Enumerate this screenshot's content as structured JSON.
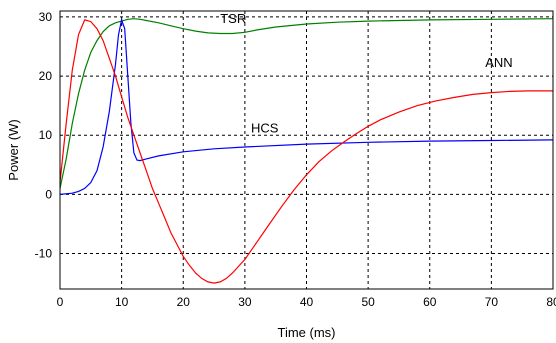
{
  "chart_data": {
    "type": "line",
    "xlabel": "Time (ms)",
    "ylabel": "Power (W)",
    "xlim": [
      0,
      80
    ],
    "ylim": [
      -16,
      31
    ],
    "xticks": [
      0,
      10,
      20,
      30,
      40,
      50,
      60,
      70,
      80
    ],
    "yticks": [
      -10,
      0,
      10,
      20,
      30
    ],
    "grid": "dashed",
    "legend": "inline labels",
    "series": [
      {
        "name": "TSR",
        "color": "#008000",
        "label_at": [
          26,
          29
        ],
        "points": [
          [
            0,
            1
          ],
          [
            1,
            6
          ],
          [
            2,
            12
          ],
          [
            3,
            17
          ],
          [
            4,
            21
          ],
          [
            5,
            24
          ],
          [
            6,
            26
          ],
          [
            7,
            27.5
          ],
          [
            8,
            28.5
          ],
          [
            9,
            29
          ],
          [
            10,
            29.3
          ],
          [
            11,
            29.6
          ],
          [
            12,
            29.7
          ],
          [
            13,
            29.6
          ],
          [
            14,
            29.4
          ],
          [
            16,
            29
          ],
          [
            18,
            28.5
          ],
          [
            20,
            28
          ],
          [
            22,
            27.6
          ],
          [
            24,
            27.3
          ],
          [
            26,
            27.2
          ],
          [
            28,
            27.2
          ],
          [
            30,
            27.4
          ],
          [
            32,
            27.8
          ],
          [
            35,
            28.3
          ],
          [
            40,
            28.8
          ],
          [
            45,
            29.1
          ],
          [
            50,
            29.3
          ],
          [
            60,
            29.5
          ],
          [
            70,
            29.6
          ],
          [
            80,
            29.7
          ]
        ]
      },
      {
        "name": "HCS",
        "color": "#0000ff",
        "label_at": [
          31,
          10.5
        ],
        "points": [
          [
            0,
            0
          ],
          [
            2,
            0.2
          ],
          [
            3,
            0.5
          ],
          [
            4,
            1
          ],
          [
            5,
            2
          ],
          [
            6,
            4
          ],
          [
            7,
            8
          ],
          [
            8,
            14
          ],
          [
            9,
            22
          ],
          [
            9.5,
            27
          ],
          [
            10,
            29.5
          ],
          [
            10.5,
            28
          ],
          [
            11,
            20
          ],
          [
            11.5,
            12
          ],
          [
            12,
            7
          ],
          [
            12.5,
            5.8
          ],
          [
            13,
            5.7
          ],
          [
            14,
            6
          ],
          [
            16,
            6.5
          ],
          [
            20,
            7.2
          ],
          [
            25,
            7.7
          ],
          [
            30,
            8
          ],
          [
            40,
            8.5
          ],
          [
            50,
            8.8
          ],
          [
            60,
            9
          ],
          [
            70,
            9.1
          ],
          [
            80,
            9.2
          ]
        ]
      },
      {
        "name": "ANN",
        "color": "#ff0000",
        "label_at": [
          69,
          21.5
        ],
        "points": [
          [
            0,
            2
          ],
          [
            1,
            12
          ],
          [
            2,
            21
          ],
          [
            3,
            27
          ],
          [
            4,
            29.5
          ],
          [
            5,
            29.2
          ],
          [
            6,
            28
          ],
          [
            7,
            26
          ],
          [
            8,
            23
          ],
          [
            9,
            20
          ],
          [
            10,
            16.5
          ],
          [
            11,
            13
          ],
          [
            12,
            10
          ],
          [
            13,
            7
          ],
          [
            14,
            4
          ],
          [
            15,
            1
          ],
          [
            16,
            -1.5
          ],
          [
            17,
            -4
          ],
          [
            18,
            -6.5
          ],
          [
            19,
            -8.5
          ],
          [
            20,
            -10.5
          ],
          [
            21,
            -12
          ],
          [
            22,
            -13.3
          ],
          [
            23,
            -14.2
          ],
          [
            24,
            -14.8
          ],
          [
            25,
            -15
          ],
          [
            26,
            -14.8
          ],
          [
            27,
            -14.2
          ],
          [
            28,
            -13.3
          ],
          [
            30,
            -11
          ],
          [
            32,
            -8
          ],
          [
            34,
            -5
          ],
          [
            36,
            -2
          ],
          [
            38,
            0.8
          ],
          [
            40,
            3.3
          ],
          [
            42,
            5.5
          ],
          [
            44,
            7.3
          ],
          [
            46,
            8.8
          ],
          [
            48,
            10.2
          ],
          [
            50,
            11.5
          ],
          [
            52,
            12.6
          ],
          [
            55,
            13.9
          ],
          [
            58,
            15
          ],
          [
            61,
            15.8
          ],
          [
            64,
            16.4
          ],
          [
            67,
            16.9
          ],
          [
            70,
            17.2
          ],
          [
            73,
            17.4
          ],
          [
            76,
            17.5
          ],
          [
            80,
            17.5
          ]
        ]
      }
    ]
  }
}
